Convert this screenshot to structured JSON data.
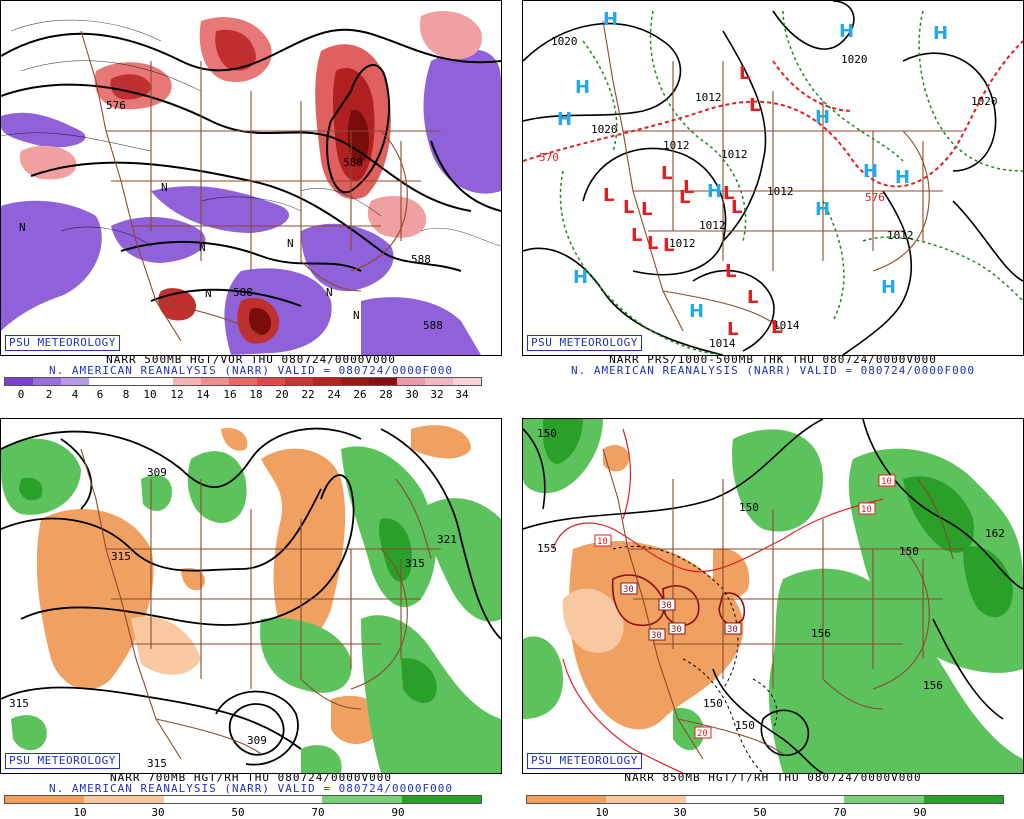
{
  "panels": [
    {
      "id": "vor500",
      "badge": "PSU METEOROLOGY",
      "title": "NARR 500MB HGT/VOR THU 080724/0000V000",
      "subtitle": "N. AMERICAN REANALYSIS (NARR) VALID = 080724/0000F000",
      "scale_ticks": [
        "0",
        "2",
        "4",
        "6",
        "8",
        "10",
        "12",
        "14",
        "16",
        "18",
        "20",
        "22",
        "24",
        "26",
        "28",
        "30",
        "32",
        "34"
      ],
      "scale_colors": [
        "#7b3fd0",
        "#9a6ee0",
        "#b79ae8",
        "#ffffff",
        "#ffffff",
        "#ffffff",
        "#f4b4b4",
        "#f08e8e",
        "#e86868",
        "#dd4a4a",
        "#cc3333",
        "#b82222",
        "#a01818",
        "#8a1010",
        "#e89aa8",
        "#f2b6c0",
        "#f8d2d8"
      ],
      "labels": [
        "576",
        "588",
        "588",
        "588",
        "588",
        "N",
        "N",
        "N",
        "N",
        "N",
        "N",
        "N"
      ]
    },
    {
      "id": "prs1000",
      "badge": "PSU METEOROLOGY",
      "title": "NARR PRS/1000-500MB THK THU 080724/0000V000",
      "subtitle": "N. AMERICAN REANALYSIS (NARR) VALID = 080724/0000F000",
      "labels": [
        "1020",
        "1020",
        "1020",
        "1020",
        "1012",
        "1012",
        "1012",
        "1012",
        "1012",
        "1012",
        "1012",
        "1014",
        "570",
        "576"
      ],
      "highs": [
        "H",
        "H",
        "H",
        "H",
        "H",
        "H",
        "H",
        "H",
        "H",
        "H",
        "H",
        "H"
      ],
      "lows": [
        "L",
        "L",
        "L",
        "L",
        "L",
        "L",
        "L",
        "L",
        "L",
        "L",
        "L",
        "L",
        "L",
        "L",
        "L",
        "L",
        "L"
      ]
    },
    {
      "id": "rh700",
      "badge": "PSU METEOROLOGY",
      "title": "NARR 700MB HGT/RH THU 080724/0000V000",
      "subtitle": "N. AMERICAN REANALYSIS (NARR) VALID = 080724/0000F000",
      "scale_ticks": [
        "10",
        "30",
        "50",
        "70",
        "90"
      ],
      "scale_colors": [
        "#f0a060",
        "#f8c8a0",
        "#ffffff",
        "#ffffff",
        "#7ad07a",
        "#2aa02a"
      ],
      "labels": [
        "309",
        "315",
        "321",
        "315",
        "315",
        "309",
        "315"
      ]
    },
    {
      "id": "t850",
      "badge": "PSU METEOROLOGY",
      "title": "NARR 850MB HGT/T/RH THU 080724/0000V000",
      "subtitle": "",
      "scale_ticks": [
        "10",
        "30",
        "50",
        "70",
        "90"
      ],
      "scale_colors": [
        "#f0a060",
        "#f8c8a0",
        "#ffffff",
        "#ffffff",
        "#7ad07a",
        "#2aa02a"
      ],
      "labels": [
        "150",
        "155",
        "150",
        "162",
        "150",
        "156",
        "156",
        "150",
        "150"
      ],
      "temp_labels": [
        "10",
        "10",
        "10",
        "30",
        "30",
        "30",
        "30",
        "30",
        "20"
      ]
    }
  ],
  "colors": {
    "land_border": "#8b4a2a",
    "contour": "#000000",
    "thickness": "#e02020",
    "highs": "#22aaee",
    "lows": "#e02020",
    "dewline": "#1a8a1a"
  }
}
